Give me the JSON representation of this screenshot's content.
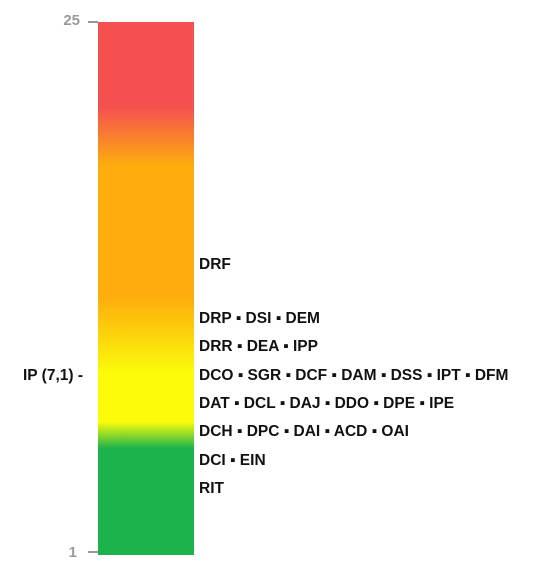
{
  "chart_data": {
    "type": "scale",
    "ylim": [
      1,
      25
    ],
    "tick_labels": [
      "25",
      "1"
    ],
    "marker_label": "IP (7,1) -",
    "marker_value": 7.1,
    "colors": {
      "red": "#f55050",
      "orange": "#fdae0d",
      "yellow": "#fcfc0a",
      "green": "#1cb34c"
    },
    "rows": [
      {
        "text": "DRF",
        "codes": [
          "DRF"
        ]
      },
      {
        "text": "DRP ▪ DSI ▪ DEM",
        "codes": [
          "DRP",
          "DSI",
          "DEM"
        ]
      },
      {
        "text": "DRR ▪ DEA ▪ IPP",
        "codes": [
          "DRR",
          "DEA",
          "IPP"
        ]
      },
      {
        "text": "DCO ▪ SGR ▪ DCF ▪ DAM ▪ DSS ▪ IPT ▪ DFM",
        "codes": [
          "DCO",
          "SGR",
          "DCF",
          "DAM",
          "DSS",
          "IPT",
          "DFM"
        ]
      },
      {
        "text": "DAT ▪ DCL ▪ DAJ ▪ DDO ▪ DPE ▪ IPE",
        "codes": [
          "DAT",
          "DCL",
          "DAJ",
          "DDO",
          "DPE",
          "IPE"
        ]
      },
      {
        "text": "DCH ▪ DPC ▪ DAI ▪ ACD ▪ OAI",
        "codes": [
          "DCH",
          "DPC",
          "DAI",
          "ACD",
          "OAI"
        ]
      },
      {
        "text": "DCI ▪ EIN",
        "codes": [
          "DCI",
          "EIN"
        ]
      },
      {
        "text": "RIT",
        "codes": [
          "RIT"
        ]
      }
    ]
  }
}
